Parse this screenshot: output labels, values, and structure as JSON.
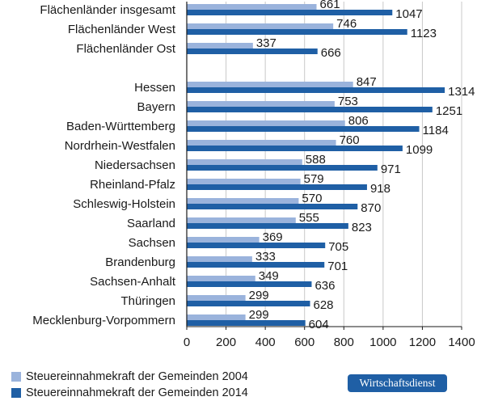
{
  "chart_data": {
    "type": "bar",
    "orientation": "horizontal",
    "categories": [
      "Flächenländer insgesamt",
      "Flächenländer West",
      "Flächenländer Ost",
      "Hessen",
      "Bayern",
      "Baden-Württemberg",
      "Nordrhein-Westfalen",
      "Niedersachsen",
      "Rheinland-Pfalz",
      "Schleswig-Holstein",
      "Saarland",
      "Sachsen",
      "Brandenburg",
      "Sachsen-Anhalt",
      "Thüringen",
      "Mecklenburg-Vorpommern"
    ],
    "series": [
      {
        "name": "Steuereinnahmekraft der Gemeinden 2004",
        "color": "#9ab3dc",
        "values": [
          661,
          746,
          337,
          847,
          753,
          806,
          760,
          588,
          579,
          570,
          555,
          369,
          333,
          349,
          299,
          299
        ]
      },
      {
        "name": "Steuereinnahmekraft der Gemeinden 2014",
        "color": "#1f5fa5",
        "values": [
          1047,
          1123,
          666,
          1314,
          1251,
          1184,
          1099,
          971,
          918,
          870,
          823,
          705,
          701,
          636,
          628,
          604
        ]
      }
    ],
    "xlim": [
      0,
      1400
    ],
    "xticks": [
      0,
      200,
      400,
      600,
      800,
      1000,
      1200,
      1400
    ],
    "grid": true,
    "legend_position": "bottom-left"
  },
  "badge": "Wirtschaftsdienst"
}
